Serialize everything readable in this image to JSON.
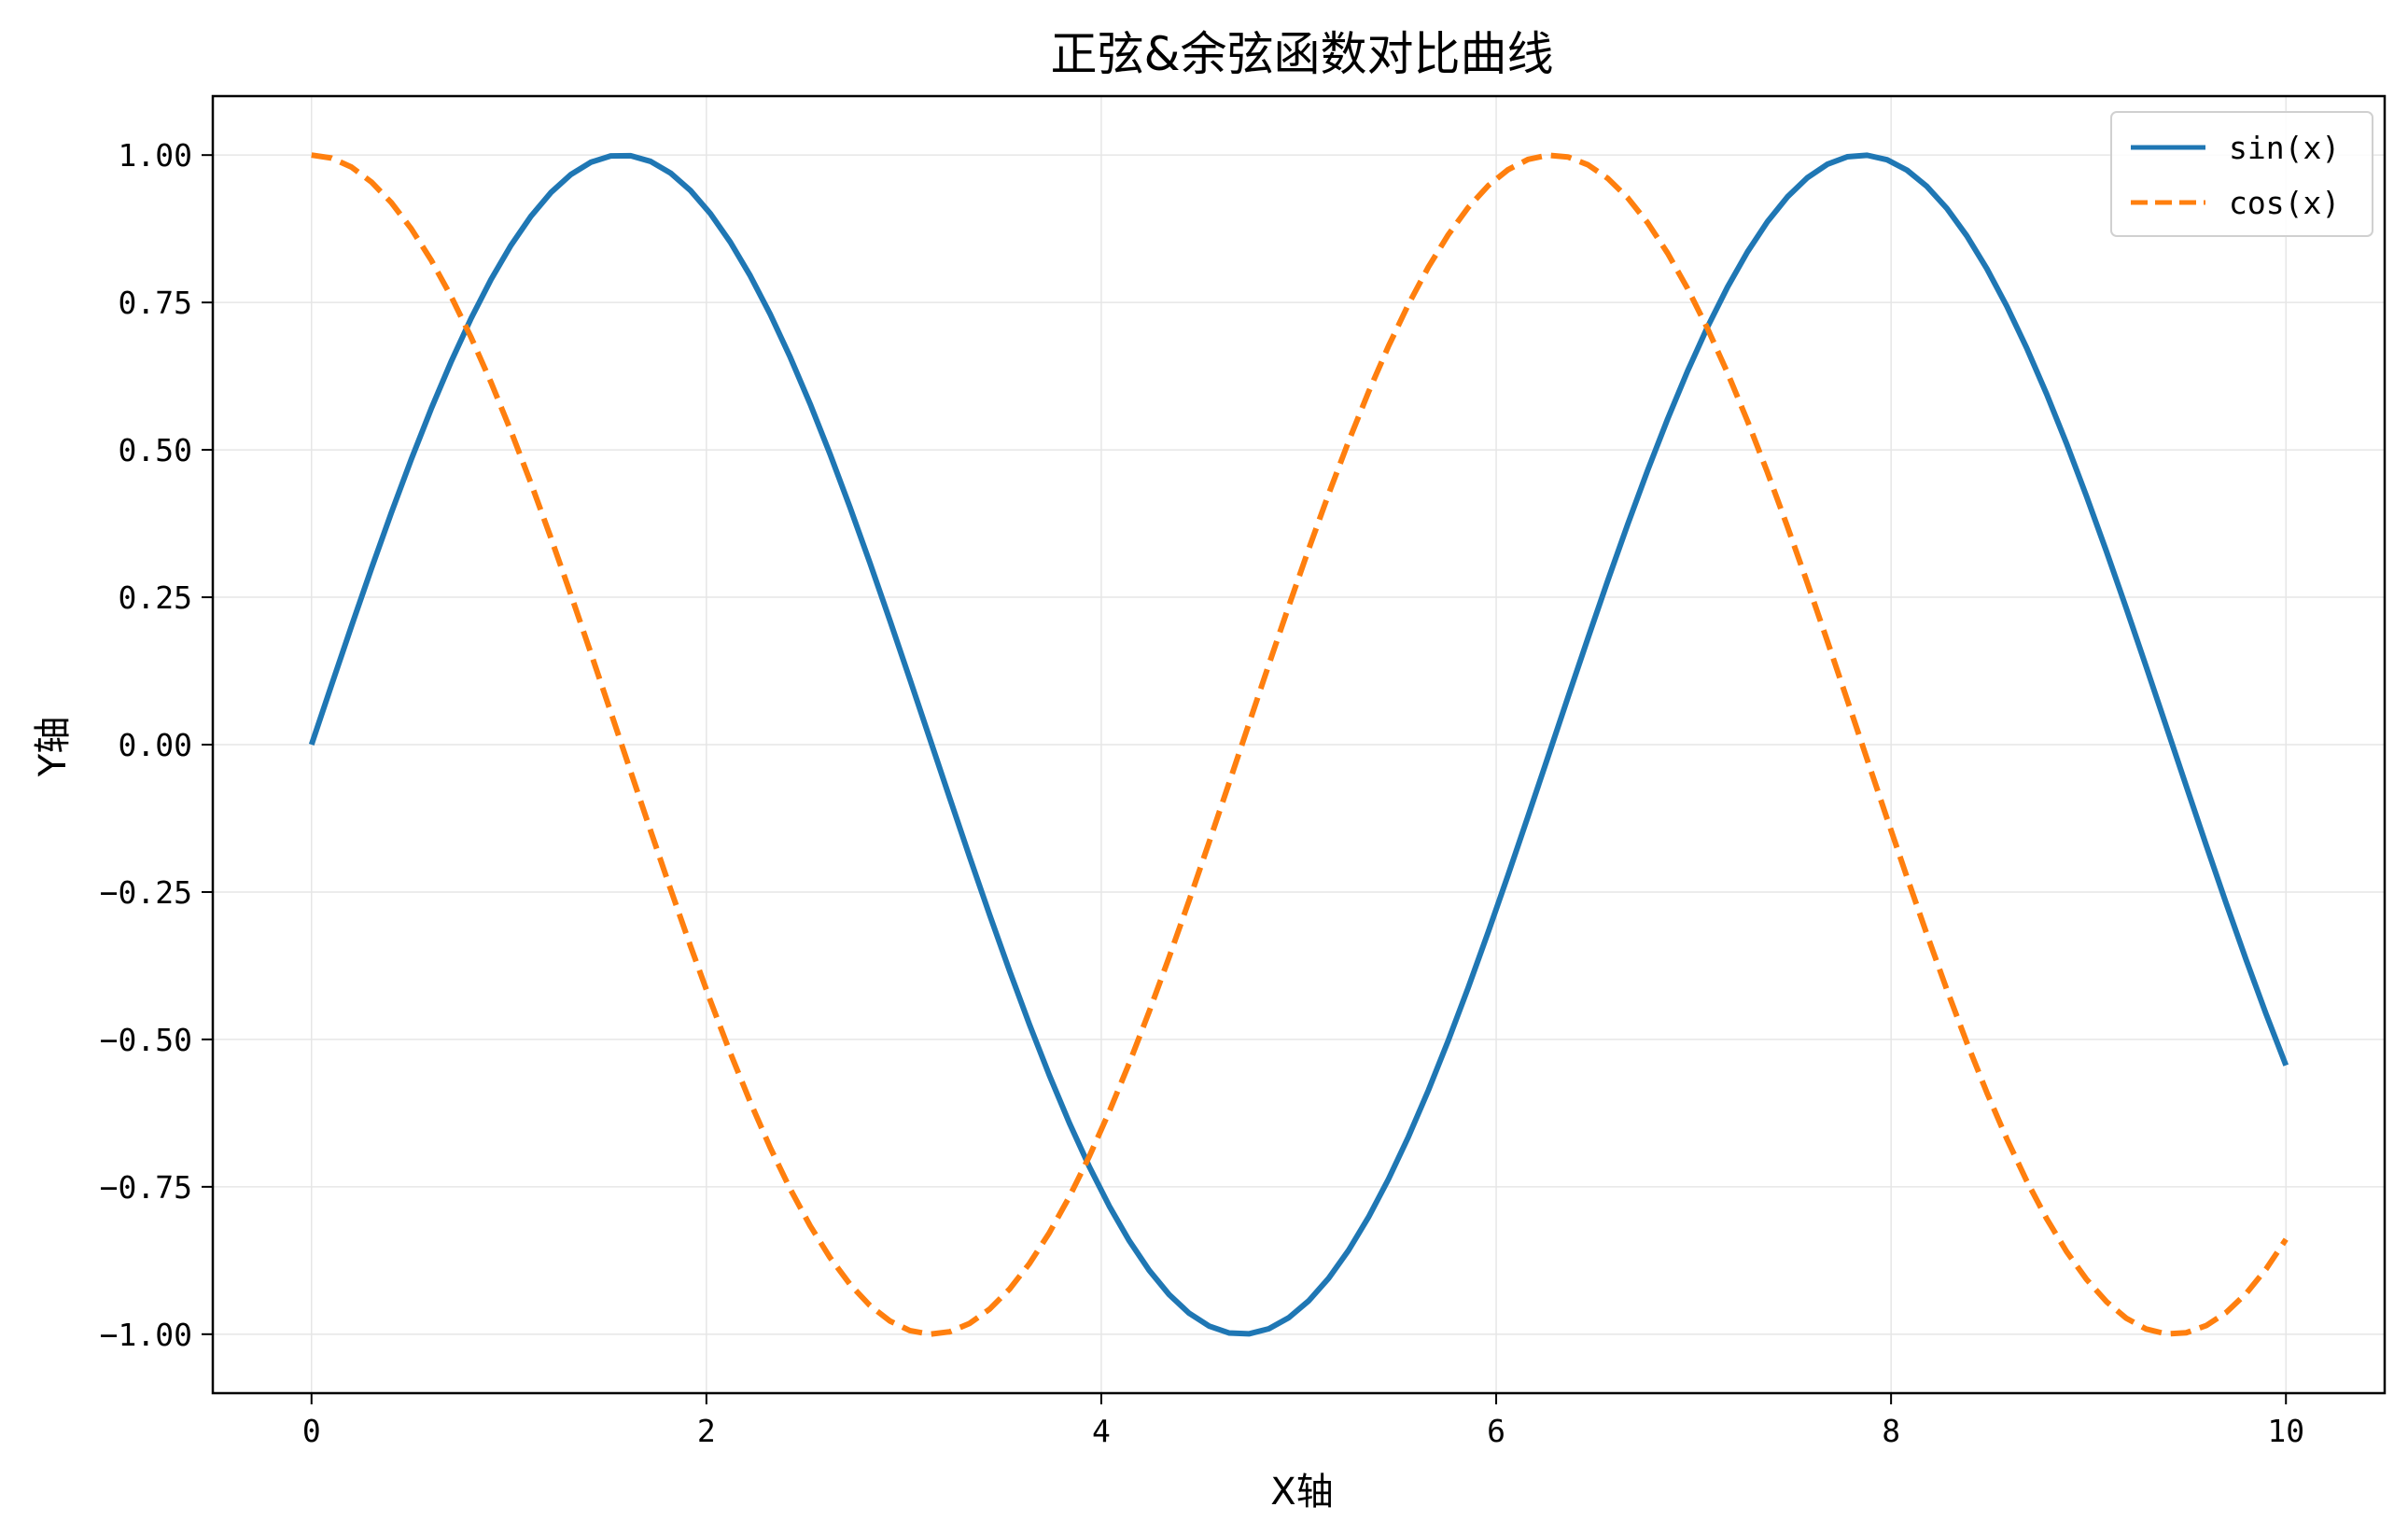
{
  "chart_data": {
    "type": "line",
    "title": "正弦&余弦函数对比曲线",
    "xlabel": "X轴",
    "ylabel": "Y轴",
    "xlim": [
      -0.5,
      10.5
    ],
    "ylim": [
      -1.1,
      1.1
    ],
    "xticks": [
      0,
      2,
      4,
      6,
      8,
      10
    ],
    "xtick_labels": [
      "0",
      "2",
      "4",
      "6",
      "8",
      "10"
    ],
    "yticks": [
      1.0,
      0.75,
      0.5,
      0.25,
      0.0,
      -0.25,
      -0.5,
      -0.75,
      -1.0
    ],
    "ytick_labels": [
      "1.00",
      "0.75",
      "0.50",
      "0.25",
      "0.00",
      "−0.25",
      "−0.50",
      "−0.75",
      "−1.00"
    ],
    "grid": true,
    "legend_position": "top-right",
    "x_range": [
      0,
      10
    ],
    "series": [
      {
        "name": "sin(x)",
        "function": "sin(x)",
        "color": "#1f77b4",
        "style": "solid"
      },
      {
        "name": "cos(x)",
        "function": "cos(x)",
        "color": "#ff7f0e",
        "style": "dashed"
      }
    ]
  }
}
